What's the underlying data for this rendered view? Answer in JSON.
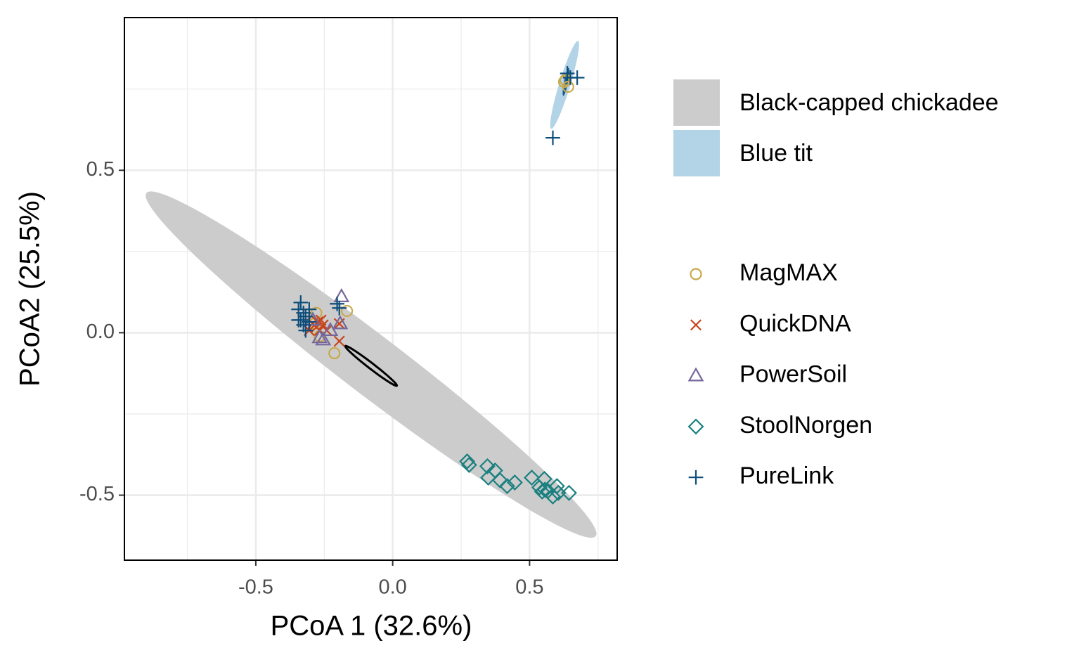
{
  "chart_data": {
    "type": "scatter",
    "xlabel": "PCoA 1 (32.6%)",
    "ylabel": "PCoA2 (25.5%)",
    "xlim": [
      -0.98,
      0.82
    ],
    "ylim": [
      -0.7,
      0.97
    ],
    "xticks": [
      -0.5,
      {
        "value": 0,
        "label": "0.0"
      },
      0.5
    ],
    "yticks": [
      0.5,
      {
        "value": 0,
        "label": "0.0"
      },
      -0.5
    ],
    "xminorticks": [
      -0.75,
      -0.25,
      0.25,
      0.75
    ],
    "yminorticks": [
      0.75,
      0.25,
      -0.25
    ],
    "grid": true,
    "ellipses": [
      {
        "name": "Black-capped chickadee",
        "fill": "#cccccc",
        "center": [
          -0.079,
          -0.098
        ],
        "axis1": [
          0.821,
          -0.528
        ],
        "axis2": [
          -0.065,
          -0.073
        ]
      },
      {
        "name": "Blue tit",
        "fill": "#b3d3e6",
        "center": [
          0.628,
          0.763
        ],
        "axis1": [
          0.049,
          0.135
        ],
        "axis2": [
          0.0195,
          -0.005
        ]
      },
      {
        "stroke": "#000000",
        "center": [
          -0.079,
          -0.102
        ],
        "axis1": [
          0.094,
          -0.061
        ],
        "axis2": [
          -0.006,
          -0.007
        ]
      },
      {
        "fill": "#1a5a8a",
        "center": [
          0.633,
          0.772
        ],
        "axis1": [
          0.01,
          0.043
        ],
        "axis2": [
          0.007,
          -0.002
        ]
      }
    ],
    "series": [
      {
        "name": "MagMAX",
        "color": "#c9a94d",
        "shape": "circle",
        "x": [
          -0.279,
          -0.287,
          -0.267,
          -0.213,
          -0.167,
          0.631,
          0.641,
          0.626
        ],
        "y": [
          0.061,
          0.028,
          -0.011,
          -0.063,
          0.067,
          0.778,
          0.757,
          0.772
        ]
      },
      {
        "name": "QuickDNA",
        "color": "#c8431a",
        "shape": "x",
        "x": [
          -0.292,
          -0.279,
          -0.267,
          -0.254,
          -0.274,
          -0.195,
          -0.195,
          -0.241,
          -0.305,
          -0.262
        ],
        "y": [
          0.028,
          0.017,
          0.007,
          0.024,
          0.033,
          0.028,
          -0.026,
          0.007,
          0.007,
          0.039
        ]
      },
      {
        "name": "PowerSoil",
        "color": "#75679b",
        "shape": "triangle",
        "x": [
          -0.187,
          -0.254,
          -0.228,
          -0.192,
          -0.292,
          -0.267
        ],
        "y": [
          0.111,
          -0.022,
          0.007,
          0.028,
          0.039,
          -0.015
        ]
      },
      {
        "name": "StoolNorgen",
        "color": "#1b8080",
        "shape": "diamond",
        "x": [
          0.272,
          0.279,
          0.346,
          0.349,
          0.374,
          0.392,
          0.418,
          0.446,
          0.508,
          0.554,
          0.536,
          0.546,
          0.567,
          0.585,
          0.605,
          0.644,
          0.556,
          0.6
        ],
        "y": [
          -0.396,
          -0.407,
          -0.411,
          -0.446,
          -0.424,
          -0.454,
          -0.472,
          -0.461,
          -0.446,
          -0.45,
          -0.476,
          -0.489,
          -0.487,
          -0.504,
          -0.493,
          -0.493,
          -0.483,
          -0.472
        ]
      },
      {
        "name": "PureLink",
        "color": "#0d4d7a",
        "shape": "plus",
        "x": [
          -0.336,
          -0.344,
          -0.326,
          -0.336,
          -0.326,
          -0.305,
          -0.318,
          -0.344,
          -0.195,
          -0.203,
          0.649,
          0.638,
          0.674,
          0.585,
          -0.318,
          -0.305
        ],
        "y": [
          0.093,
          0.072,
          0.061,
          0.039,
          0.024,
          0.033,
          0.007,
          0.039,
          0.076,
          0.089,
          0.785,
          0.798,
          0.785,
          0.6,
          0.05,
          0.072
        ]
      }
    ]
  }
}
